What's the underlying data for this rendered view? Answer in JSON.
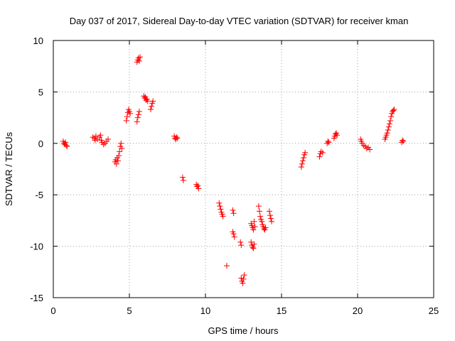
{
  "chart_data": {
    "type": "scatter",
    "title": "Day 037 of 2017, Sidereal Day-to-day VTEC variation (SDTVAR) for receiver kman",
    "xlabel": "GPS time / hours",
    "ylabel": "SDTVAR / TECUs",
    "xlim": [
      0,
      25
    ],
    "ylim": [
      -15,
      10
    ],
    "xticks": [
      "0",
      "5",
      "10",
      "15",
      "20",
      "25"
    ],
    "yticks": [
      "10",
      "5",
      "0",
      "-5",
      "-10",
      "-15"
    ],
    "grid": true,
    "marker": "plus",
    "series": [
      {
        "name": "SDTVAR",
        "color": "#ff0000",
        "points": [
          [
            0.65,
            0.2
          ],
          [
            0.7,
            0.0
          ],
          [
            0.75,
            -0.1
          ],
          [
            0.8,
            0.1
          ],
          [
            0.85,
            -0.2
          ],
          [
            0.9,
            -0.3
          ],
          [
            2.6,
            0.6
          ],
          [
            2.7,
            0.5
          ],
          [
            2.75,
            0.3
          ],
          [
            2.8,
            0.7
          ],
          [
            2.9,
            0.4
          ],
          [
            3.05,
            0.6
          ],
          [
            3.1,
            0.8
          ],
          [
            3.15,
            0.3
          ],
          [
            3.2,
            0.1
          ],
          [
            3.3,
            -0.1
          ],
          [
            3.4,
            0.0
          ],
          [
            3.5,
            0.2
          ],
          [
            3.6,
            0.4
          ],
          [
            4.05,
            -1.8
          ],
          [
            4.1,
            -1.6
          ],
          [
            4.15,
            -2.0
          ],
          [
            4.2,
            -1.4
          ],
          [
            4.25,
            -1.7
          ],
          [
            4.3,
            -1.2
          ],
          [
            4.35,
            -0.8
          ],
          [
            4.4,
            -0.3
          ],
          [
            4.45,
            0.0
          ],
          [
            4.5,
            -0.5
          ],
          [
            4.8,
            2.2
          ],
          [
            4.85,
            2.6
          ],
          [
            4.9,
            3.0
          ],
          [
            4.95,
            3.3
          ],
          [
            5.0,
            3.1
          ],
          [
            5.05,
            2.9
          ],
          [
            5.5,
            2.1
          ],
          [
            5.55,
            2.5
          ],
          [
            5.6,
            2.8
          ],
          [
            5.65,
            3.1
          ],
          [
            5.5,
            7.9
          ],
          [
            5.55,
            8.1
          ],
          [
            5.6,
            8.3
          ],
          [
            5.65,
            8.0
          ],
          [
            5.7,
            8.4
          ],
          [
            5.95,
            4.6
          ],
          [
            6.0,
            4.4
          ],
          [
            6.05,
            4.5
          ],
          [
            6.1,
            4.2
          ],
          [
            6.15,
            4.3
          ],
          [
            6.2,
            4.1
          ],
          [
            6.4,
            3.3
          ],
          [
            6.45,
            3.6
          ],
          [
            6.5,
            3.9
          ],
          [
            6.55,
            4.1
          ],
          [
            7.95,
            0.7
          ],
          [
            8.0,
            0.5
          ],
          [
            8.05,
            0.4
          ],
          [
            8.1,
            0.6
          ],
          [
            8.15,
            0.5
          ],
          [
            8.5,
            -3.3
          ],
          [
            8.55,
            -3.6
          ],
          [
            9.4,
            -4.0
          ],
          [
            9.45,
            -4.2
          ],
          [
            9.5,
            -4.1
          ],
          [
            9.55,
            -4.4
          ],
          [
            10.9,
            -5.8
          ],
          [
            10.95,
            -6.1
          ],
          [
            11.0,
            -6.4
          ],
          [
            11.05,
            -6.7
          ],
          [
            11.1,
            -6.9
          ],
          [
            11.15,
            -7.1
          ],
          [
            11.4,
            -11.9
          ],
          [
            11.8,
            -6.5
          ],
          [
            11.85,
            -6.8
          ],
          [
            11.8,
            -8.6
          ],
          [
            11.85,
            -8.8
          ],
          [
            11.9,
            -9.1
          ],
          [
            12.3,
            -9.6
          ],
          [
            12.35,
            -9.9
          ],
          [
            12.35,
            -13.1
          ],
          [
            12.4,
            -13.4
          ],
          [
            12.45,
            -13.6
          ],
          [
            12.5,
            -13.2
          ],
          [
            12.55,
            -12.8
          ],
          [
            13.0,
            -9.6
          ],
          [
            13.05,
            -9.9
          ],
          [
            13.1,
            -10.1
          ],
          [
            13.15,
            -10.2
          ],
          [
            13.2,
            -9.8
          ],
          [
            13.0,
            -7.8
          ],
          [
            13.05,
            -8.0
          ],
          [
            13.1,
            -8.2
          ],
          [
            13.15,
            -8.4
          ],
          [
            13.2,
            -7.6
          ],
          [
            13.25,
            -8.1
          ],
          [
            13.5,
            -6.1
          ],
          [
            13.55,
            -6.6
          ],
          [
            13.6,
            -7.1
          ],
          [
            13.65,
            -7.4
          ],
          [
            13.7,
            -7.6
          ],
          [
            13.75,
            -7.9
          ],
          [
            13.8,
            -8.1
          ],
          [
            13.85,
            -8.3
          ],
          [
            13.9,
            -8.4
          ],
          [
            13.95,
            -8.2
          ],
          [
            14.2,
            -6.6
          ],
          [
            14.25,
            -7.0
          ],
          [
            14.3,
            -7.3
          ],
          [
            14.35,
            -7.6
          ],
          [
            16.3,
            -2.3
          ],
          [
            16.35,
            -2.0
          ],
          [
            16.4,
            -1.7
          ],
          [
            16.45,
            -1.4
          ],
          [
            16.5,
            -1.1
          ],
          [
            16.55,
            -0.9
          ],
          [
            17.5,
            -1.3
          ],
          [
            17.55,
            -1.0
          ],
          [
            17.6,
            -0.8
          ],
          [
            17.7,
            -0.9
          ],
          [
            18.0,
            0.0
          ],
          [
            18.05,
            0.2
          ],
          [
            18.1,
            0.1
          ],
          [
            18.45,
            0.5
          ],
          [
            18.5,
            0.7
          ],
          [
            18.55,
            0.9
          ],
          [
            18.6,
            1.0
          ],
          [
            18.65,
            0.8
          ],
          [
            20.2,
            0.4
          ],
          [
            20.25,
            0.2
          ],
          [
            20.3,
            0.0
          ],
          [
            20.4,
            -0.2
          ],
          [
            20.5,
            -0.3
          ],
          [
            20.6,
            -0.5
          ],
          [
            20.7,
            -0.4
          ],
          [
            20.8,
            -0.6
          ],
          [
            21.8,
            0.4
          ],
          [
            21.85,
            0.6
          ],
          [
            21.9,
            0.8
          ],
          [
            21.95,
            1.0
          ],
          [
            22.0,
            1.3
          ],
          [
            22.05,
            1.6
          ],
          [
            22.1,
            1.9
          ],
          [
            22.15,
            2.2
          ],
          [
            22.2,
            2.6
          ],
          [
            22.25,
            2.9
          ],
          [
            22.3,
            3.1
          ],
          [
            22.35,
            3.2
          ],
          [
            22.4,
            3.3
          ],
          [
            22.9,
            0.1
          ],
          [
            22.95,
            0.3
          ],
          [
            23.0,
            0.2
          ]
        ]
      }
    ]
  }
}
